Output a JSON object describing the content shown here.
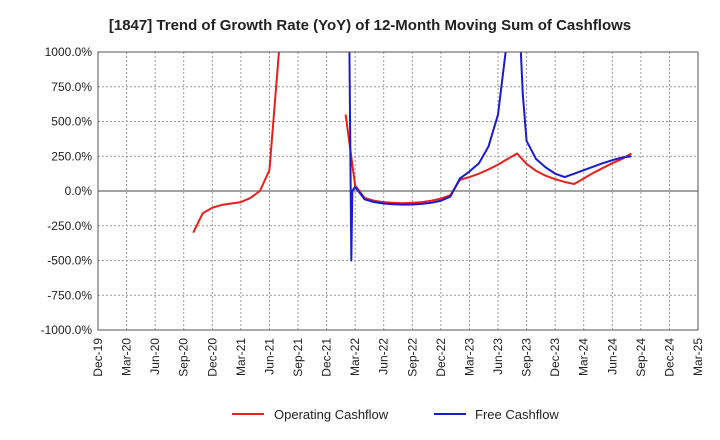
{
  "chart_data": {
    "type": "line",
    "title": "[1847]  Trend of Growth Rate (YoY) of 12-Month Moving Sum of Cashflows",
    "xlabel": "",
    "ylabel": "",
    "ylim": [
      -1000,
      1000
    ],
    "y_ticks": [
      "1000.0%",
      "750.0%",
      "500.0%",
      "250.0%",
      "0.0%",
      "-250.0%",
      "-500.0%",
      "-750.0%",
      "-1000.0%"
    ],
    "x_ticks": [
      "Dec-19",
      "Mar-20",
      "Jun-20",
      "Sep-20",
      "Dec-20",
      "Mar-21",
      "Jun-21",
      "Sep-21",
      "Dec-21",
      "Mar-22",
      "Jun-22",
      "Sep-22",
      "Dec-22",
      "Mar-23",
      "Jun-23",
      "Sep-23",
      "Dec-23",
      "Mar-24",
      "Jun-24",
      "Sep-24",
      "Dec-24",
      "Mar-25"
    ],
    "grid": true,
    "legend_position": "bottom",
    "series": [
      {
        "name": "Operating Cashflow",
        "color": "#e8201c",
        "points": [
          [
            10,
            -300
          ],
          [
            11,
            -160
          ],
          [
            12,
            -120
          ],
          [
            13,
            -100
          ],
          [
            14,
            -90
          ],
          [
            15,
            -80
          ],
          [
            16,
            -50
          ],
          [
            17,
            0
          ],
          [
            18,
            150
          ],
          [
            19,
            1000
          ],
          [
            null,
            null
          ],
          [
            26,
            550
          ],
          [
            27,
            40
          ],
          [
            28,
            -50
          ],
          [
            29,
            -70
          ],
          [
            30,
            -80
          ],
          [
            31,
            -85
          ],
          [
            32,
            -88
          ],
          [
            33,
            -85
          ],
          [
            34,
            -80
          ],
          [
            35,
            -70
          ],
          [
            36,
            -55
          ],
          [
            37,
            -30
          ],
          [
            38,
            80
          ],
          [
            39,
            100
          ],
          [
            40,
            125
          ],
          [
            41,
            155
          ],
          [
            42,
            190
          ],
          [
            43,
            230
          ],
          [
            44,
            270
          ],
          [
            45,
            195
          ],
          [
            46,
            145
          ],
          [
            47,
            110
          ],
          [
            48,
            85
          ],
          [
            49,
            65
          ],
          [
            50,
            50
          ],
          [
            51,
            90
          ],
          [
            52,
            130
          ],
          [
            53,
            165
          ],
          [
            54,
            200
          ],
          [
            55,
            230
          ],
          [
            56,
            270
          ]
        ]
      },
      {
        "name": "Free Cashflow",
        "color": "#1a1ad0",
        "points": [
          [
            26.4,
            1000
          ],
          [
            26.6,
            -500
          ],
          [
            26.7,
            0
          ],
          [
            27,
            30
          ],
          [
            28,
            -60
          ],
          [
            29,
            -80
          ],
          [
            30,
            -90
          ],
          [
            31,
            -95
          ],
          [
            32,
            -98
          ],
          [
            33,
            -97
          ],
          [
            34,
            -93
          ],
          [
            35,
            -85
          ],
          [
            36,
            -70
          ],
          [
            37,
            -40
          ],
          [
            38,
            90
          ],
          [
            39,
            140
          ],
          [
            40,
            200
          ],
          [
            41,
            320
          ],
          [
            42,
            550
          ],
          [
            42.8,
            1000
          ],
          [
            null,
            null
          ],
          [
            44.4,
            1000
          ],
          [
            44.6,
            700
          ],
          [
            45,
            360
          ],
          [
            46,
            230
          ],
          [
            47,
            170
          ],
          [
            48,
            125
          ],
          [
            49,
            100
          ],
          [
            50,
            125
          ],
          [
            51,
            150
          ],
          [
            52,
            175
          ],
          [
            53,
            200
          ],
          [
            54,
            222
          ],
          [
            55,
            240
          ],
          [
            56,
            250
          ]
        ]
      }
    ]
  }
}
